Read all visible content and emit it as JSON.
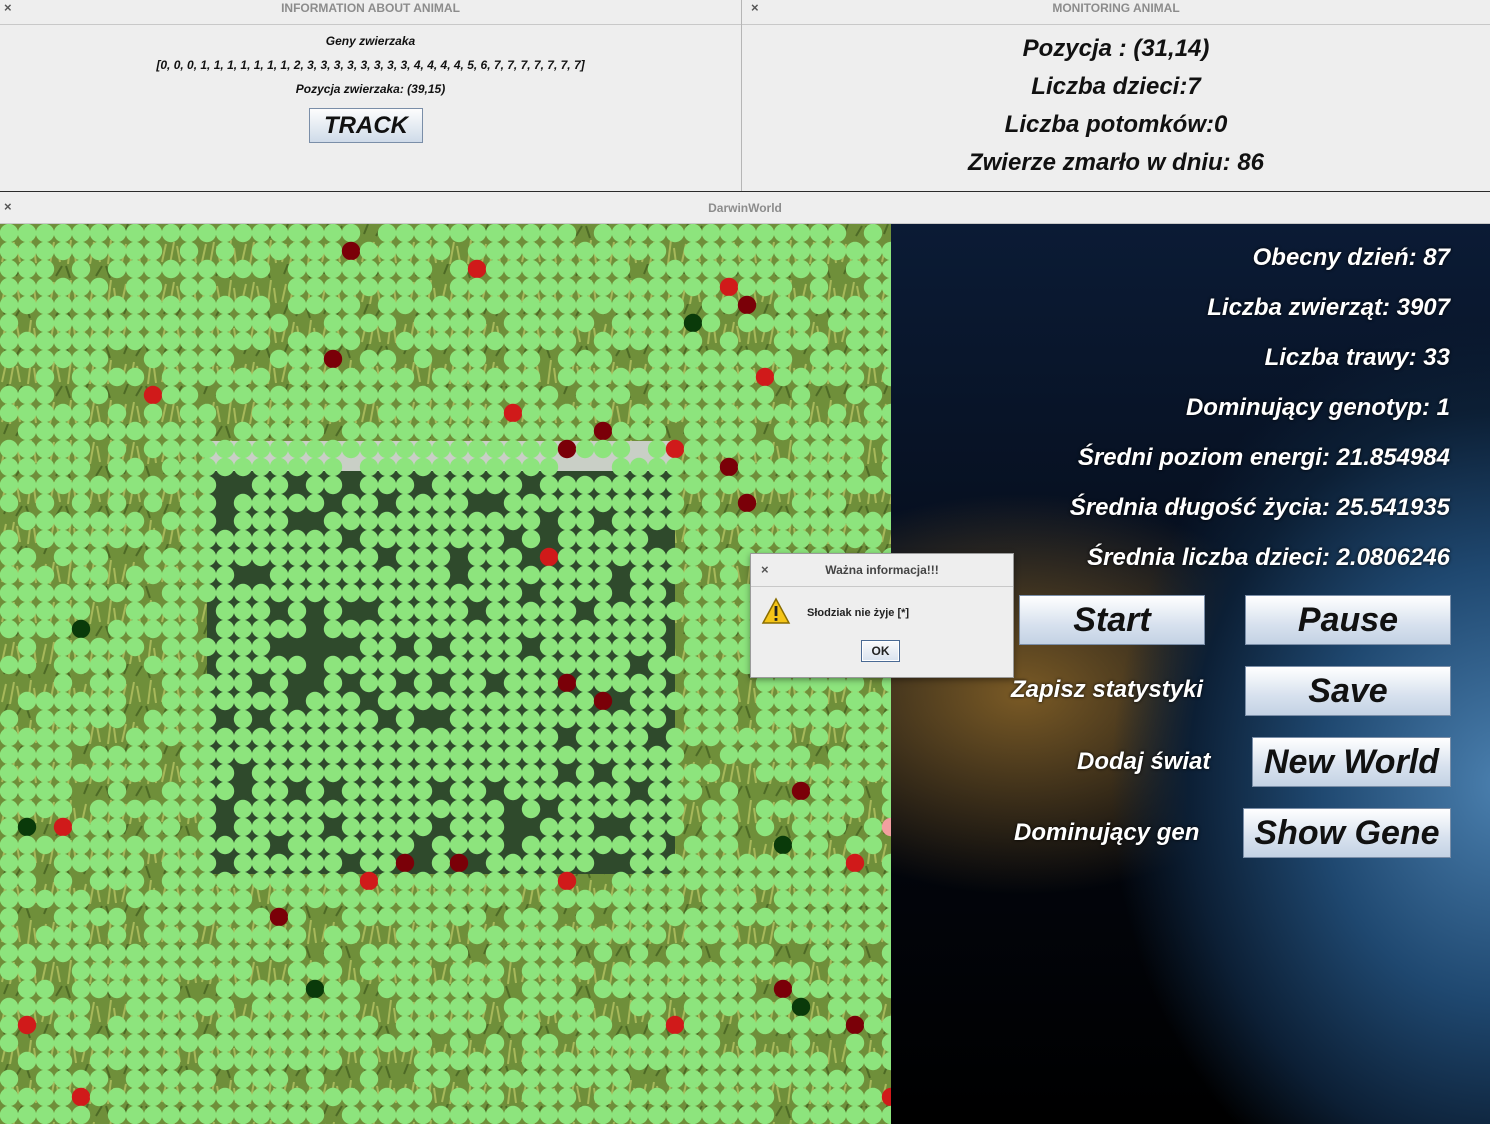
{
  "info_window": {
    "title": "INFORMATION ABOUT ANIMAL",
    "close": "×",
    "genes_label": "Geny zwierzaka",
    "genes": "[0, 0, 0, 1, 1, 1, 1, 1, 1, 1, 2, 3, 3, 3, 3, 3, 3, 3, 3, 4, 4, 4, 4, 5, 6, 7, 7, 7, 7, 7, 7, 7]",
    "position": "Pozycja zwierzaka: (39,15)",
    "track_button": "TRACK"
  },
  "monitor_window": {
    "title": "MONITORING ANIMAL",
    "close": "×",
    "position": "Pozycja : (31,14)",
    "children": "Liczba dzieci:7",
    "descendants": "Liczba potomków:0",
    "death_day": "Zwierze zmarło w dniu: 86"
  },
  "darwin_window": {
    "title": "DarwinWorld",
    "close": "×",
    "stats": {
      "day": "Obecny dzień: 87",
      "animals": "Liczba zwierząt: 3907",
      "grass": "Liczba trawy: 33",
      "genotype": "Dominujący genotyp: 1",
      "energy": "Średni poziom energi: 21.854984",
      "lifespan": "Średnia długość życia: 25.541935",
      "kids": "Średnia liczba dzieci: 2.0806246"
    },
    "buttons": {
      "start": "Start",
      "pause": "Pause",
      "save": "Save",
      "new_world": "New World",
      "show_gene": "Show Gene"
    },
    "labels": {
      "save_stats": "Zapisz statystyki",
      "add_world": "Dodaj świat",
      "dominant_gene": "Dominujący gen"
    },
    "colors": {
      "animal": "#8de47d",
      "low_energy": "#d01a1a",
      "very_low_energy": "#7a0008",
      "dead_track": "#0a3a0a",
      "pink": "#f2a0a0"
    }
  },
  "dialog": {
    "title": "Ważna informacja!!!",
    "close": "×",
    "message": "Słodziak nie żyje [*]",
    "ok": "OK",
    "icon": "warning-icon"
  }
}
